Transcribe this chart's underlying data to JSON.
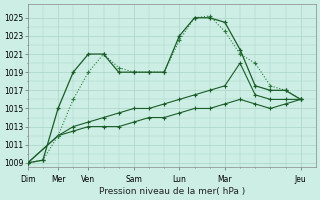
{
  "xlabel": "Pression niveau de la mer( hPa )",
  "bg_color": "#cceee4",
  "grid_color": "#aad4c4",
  "line_dark": "#1a5c28",
  "line_mid": "#2d7a3e",
  "ylim": [
    1008.5,
    1026.5
  ],
  "yticks": [
    1009,
    1011,
    1013,
    1015,
    1017,
    1019,
    1021,
    1023,
    1025
  ],
  "xtick_labels": [
    "Dim",
    "Mer",
    "Ven",
    "Sam",
    "Lun",
    "Mar",
    "Jeu"
  ],
  "xtick_positions": [
    0,
    2,
    4,
    7,
    10,
    13,
    18
  ],
  "xlim": [
    0,
    19
  ],
  "series1_x": [
    0,
    1,
    2,
    3,
    4,
    5,
    6,
    7,
    8,
    9,
    10,
    11,
    12,
    13,
    14,
    15,
    16,
    17,
    18
  ],
  "series1_y": [
    1009,
    1009.3,
    1015,
    1019,
    1021,
    1021,
    1019,
    1019,
    1019,
    1019,
    1023,
    1025,
    1025,
    1024.5,
    1021.5,
    1017.5,
    1017,
    1017,
    1016
  ],
  "series2_x": [
    0,
    1,
    2,
    3,
    4,
    5,
    6,
    7,
    8,
    9,
    10,
    11,
    12,
    13,
    14,
    15,
    16,
    17,
    18
  ],
  "series2_y": [
    1009,
    1009.3,
    1012,
    1016,
    1019,
    1021,
    1019.5,
    1019,
    1019,
    1019,
    1022.5,
    1025,
    1025.2,
    1023.5,
    1021,
    1020,
    1017.5,
    1017,
    1016
  ],
  "series3_x": [
    0,
    2,
    3,
    4,
    5,
    6,
    7,
    8,
    9,
    10,
    11,
    12,
    13,
    14,
    15,
    16,
    17,
    18
  ],
  "series3_y": [
    1009,
    1012,
    1013,
    1013.5,
    1014,
    1014.5,
    1015,
    1015,
    1015.5,
    1016,
    1016.5,
    1017,
    1017.5,
    1020,
    1016.5,
    1016,
    1016,
    1016
  ],
  "series4_x": [
    0,
    2,
    3,
    4,
    5,
    6,
    7,
    8,
    9,
    10,
    11,
    12,
    13,
    14,
    15,
    16,
    17,
    18
  ],
  "series4_y": [
    1009,
    1012,
    1012.5,
    1013,
    1013,
    1013,
    1013.5,
    1014,
    1014,
    1014.5,
    1015,
    1015,
    1015.5,
    1016,
    1015.5,
    1015,
    1015.5,
    1016
  ]
}
